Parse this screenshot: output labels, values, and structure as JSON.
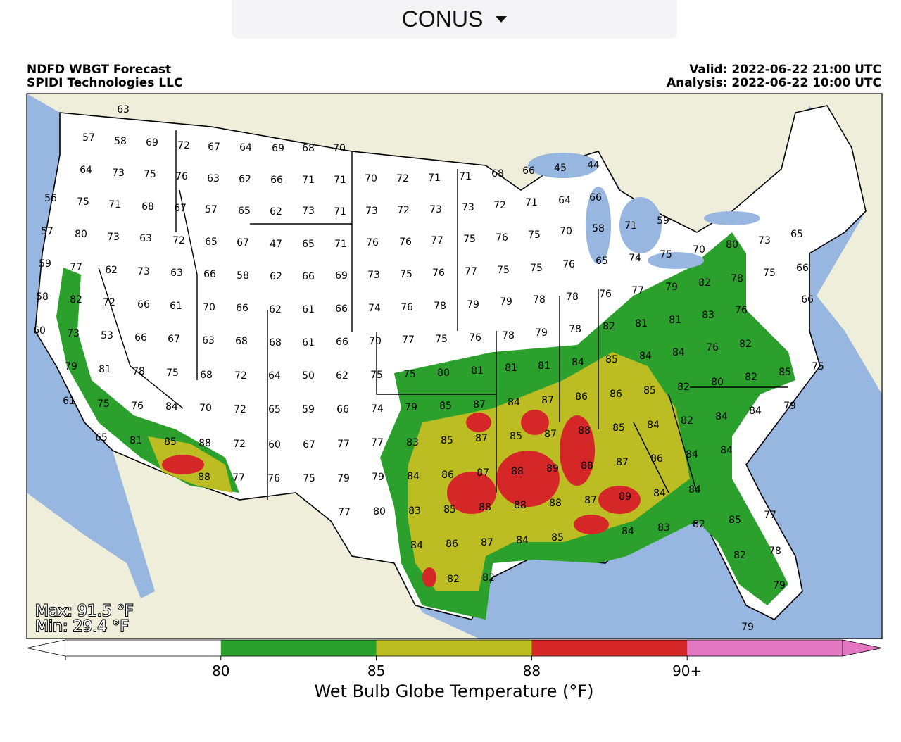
{
  "dropdown": {
    "label": "CONUS"
  },
  "header": {
    "title": "NDFD WBGT Forecast",
    "source": "SPIDI Technologies LLC",
    "valid": "Valid: 2022-06-22 21:00 UTC",
    "analysis": "Analysis: 2022-06-22 10:00 UTC"
  },
  "map": {
    "max_label": "Max: 91.5 °F",
    "min_label": "Min: 29.4 °F",
    "stations": [
      63,
      57,
      58,
      69,
      72,
      67,
      64,
      69,
      68,
      70,
      64,
      73,
      75,
      76,
      63,
      62,
      66,
      71,
      71,
      70,
      72,
      71,
      71,
      68,
      66,
      45,
      44,
      56,
      75,
      71,
      68,
      67,
      57,
      65,
      62,
      73,
      71,
      73,
      72,
      73,
      73,
      72,
      71,
      64,
      66,
      57,
      80,
      73,
      63,
      72,
      65,
      67,
      47,
      65,
      71,
      76,
      76,
      77,
      75,
      76,
      75,
      70,
      58,
      71,
      59,
      59,
      77,
      62,
      73,
      63,
      66,
      58,
      62,
      66,
      69,
      73,
      75,
      76,
      77,
      75,
      75,
      76,
      65,
      74,
      75,
      70,
      80,
      73,
      65,
      58,
      82,
      72,
      66,
      61,
      70,
      66,
      62,
      61,
      66,
      74,
      76,
      78,
      79,
      79,
      78,
      78,
      76,
      77,
      79,
      82,
      78,
      75,
      66,
      60,
      73,
      53,
      66,
      67,
      63,
      68,
      68,
      61,
      66,
      70,
      77,
      75,
      76,
      78,
      79,
      78,
      82,
      81,
      81,
      83,
      76,
      66,
      79,
      81,
      78,
      75,
      68,
      72,
      64,
      50,
      62,
      75,
      75,
      80,
      81,
      81,
      81,
      84,
      85,
      84,
      84,
      76,
      82,
      61,
      75,
      76,
      84,
      70,
      72,
      65,
      59,
      66,
      74,
      79,
      85,
      87,
      84,
      87,
      86,
      86,
      85,
      82,
      80,
      82,
      85,
      75,
      65,
      81,
      85,
      88,
      72,
      60,
      67,
      77,
      77,
      83,
      85,
      87,
      85,
      87,
      88,
      85,
      84,
      82,
      84,
      84,
      79,
      88,
      77,
      76,
      75,
      79,
      79,
      84,
      86,
      87,
      88,
      89,
      88,
      87,
      86,
      84,
      84,
      77,
      80,
      83,
      85,
      88,
      88,
      88,
      87,
      89,
      84,
      84,
      84,
      86,
      87,
      84,
      85,
      84,
      83,
      82,
      85,
      77,
      82,
      82,
      82,
      78,
      79,
      79
    ]
  },
  "colorbar": {
    "ticks": [
      "80",
      "85",
      "88",
      "90+"
    ],
    "colors": [
      "#ffffff",
      "#2ca02c",
      "#bcbd22",
      "#d62728",
      "#e377c2"
    ],
    "label": "Wet Bulb Globe Temperature (°F)"
  }
}
